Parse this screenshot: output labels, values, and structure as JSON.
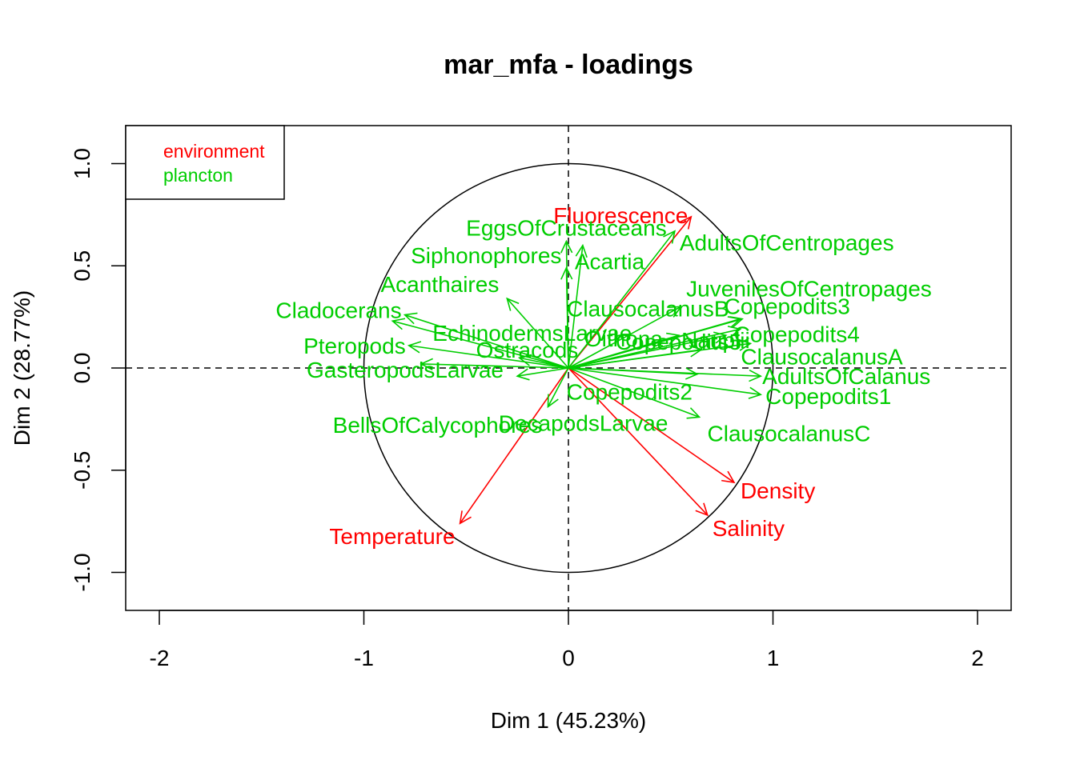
{
  "chart_data": {
    "type": "scatter",
    "title": "mar_mfa - loadings",
    "xlabel": "Dim 1 (45.23%)",
    "ylabel": "Dim 2 (28.77%)",
    "xlim": [
      -2.17,
      2.17
    ],
    "ylim": [
      -1.19,
      1.19
    ],
    "x_ticks": [
      -2,
      -1,
      0,
      1,
      2
    ],
    "y_ticks": [
      -1.0,
      -0.5,
      0.0,
      0.5,
      1.0
    ],
    "x_tick_labels": [
      "-2",
      "-1",
      "0",
      "1",
      "2"
    ],
    "y_tick_labels": [
      "-1.0",
      "-0.5",
      "0.0",
      "0.5",
      "1.0"
    ],
    "reference_lines": {
      "x": 0,
      "y": 0,
      "style": "dashed"
    },
    "unit_circle": true,
    "grid": false,
    "legend": {
      "position": "top-left",
      "entries": [
        {
          "label": "environment",
          "color": "#ff0000"
        },
        {
          "label": "plancton",
          "color": "#00cd00"
        }
      ]
    },
    "series": [
      {
        "name": "environment",
        "color": "#ff0000",
        "points": [
          {
            "label": "Fluorescence",
            "x": 0.6,
            "y": 0.74
          },
          {
            "label": "Temperature",
            "x": -0.53,
            "y": -0.76
          },
          {
            "label": "Density",
            "x": 0.81,
            "y": -0.56
          },
          {
            "label": "Salinity",
            "x": 0.68,
            "y": -0.72
          }
        ]
      },
      {
        "name": "plancton",
        "color": "#00cd00",
        "points": [
          {
            "label": "EggsOfCrustaceans",
            "x": -0.01,
            "y": 0.62
          },
          {
            "label": "Acartia",
            "x": 0.07,
            "y": 0.6
          },
          {
            "label": "Siphonophores",
            "x": -0.01,
            "y": 0.49
          },
          {
            "label": "AdultsOfCentropages",
            "x": 0.52,
            "y": 0.67
          },
          {
            "label": "Acanthaires",
            "x": -0.3,
            "y": 0.34
          },
          {
            "label": "Cladocerans",
            "x": -0.8,
            "y": 0.26
          },
          {
            "label": "JuvenilesOfCentropages",
            "x": 0.85,
            "y": 0.24
          },
          {
            "label": "ClausocalanusB",
            "x": 0.55,
            "y": 0.3
          },
          {
            "label": "Copepodits3",
            "x": 0.84,
            "y": 0.24
          },
          {
            "label": "EchinodermsLarvae",
            "x": -0.86,
            "y": 0.23
          },
          {
            "label": "Oithona",
            "x": 0.54,
            "y": 0.16
          },
          {
            "label": "Nauplii",
            "x": 0.77,
            "y": 0.16
          },
          {
            "label": "Copepodits4",
            "x": 0.84,
            "y": 0.19
          },
          {
            "label": "ClausocalanusA",
            "x": 0.89,
            "y": 0.12
          },
          {
            "label": "Pteropods",
            "x": -0.78,
            "y": 0.11
          },
          {
            "label": "Ostracods",
            "x": -0.24,
            "y": 0.05
          },
          {
            "label": "Copepodits5",
            "x": 0.65,
            "y": 0.09
          },
          {
            "label": "AdultsOfCalanus",
            "x": 0.94,
            "y": -0.04
          },
          {
            "label": "GasteropodsLarvae",
            "x": -0.72,
            "y": 0.02
          },
          {
            "label": "Copepodits2",
            "x": 0.63,
            "y": -0.03
          },
          {
            "label": "Copepodits1",
            "x": 0.94,
            "y": -0.13
          },
          {
            "label": "DecapodsLarvae",
            "x": -0.1,
            "y": -0.19
          },
          {
            "label": "BellsOfCalycophores",
            "x": -0.25,
            "y": -0.04
          },
          {
            "label": "ClausocalanusC",
            "x": 0.64,
            "y": -0.24
          }
        ]
      }
    ]
  }
}
